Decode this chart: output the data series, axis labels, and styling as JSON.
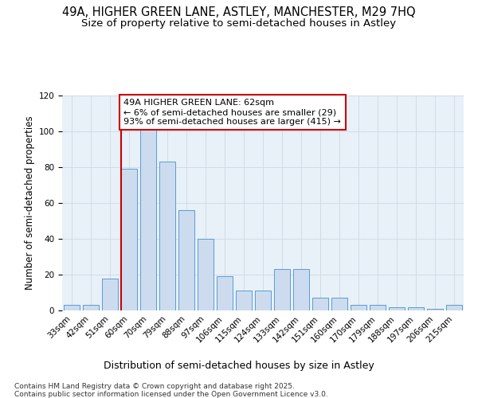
{
  "title_line1": "49A, HIGHER GREEN LANE, ASTLEY, MANCHESTER, M29 7HQ",
  "title_line2": "Size of property relative to semi-detached houses in Astley",
  "xlabel": "Distribution of semi-detached houses by size in Astley",
  "ylabel": "Number of semi-detached properties",
  "categories": [
    "33sqm",
    "42sqm",
    "51sqm",
    "60sqm",
    "70sqm",
    "79sqm",
    "88sqm",
    "97sqm",
    "106sqm",
    "115sqm",
    "124sqm",
    "133sqm",
    "142sqm",
    "151sqm",
    "160sqm",
    "170sqm",
    "179sqm",
    "188sqm",
    "197sqm",
    "206sqm",
    "215sqm"
  ],
  "values": [
    3,
    3,
    18,
    79,
    101,
    83,
    56,
    40,
    19,
    11,
    11,
    23,
    23,
    7,
    7,
    3,
    3,
    2,
    2,
    1,
    3
  ],
  "bar_color": "#ccdcee",
  "bar_edge_color": "#5b9bd5",
  "grid_color": "#d0d8e4",
  "bg_color": "#e8f0f8",
  "annotation_box_color": "#cc0000",
  "prop_line_color": "#cc0000",
  "ylim": [
    0,
    120
  ],
  "yticks": [
    0,
    20,
    40,
    60,
    80,
    100,
    120
  ],
  "prop_bar_index": 3,
  "prop_label": "49A HIGHER GREEN LANE: 62sqm",
  "smaller_pct": "6%",
  "smaller_count": 29,
  "larger_pct": "93%",
  "larger_count": 415,
  "footer_line1": "Contains HM Land Registry data © Crown copyright and database right 2025.",
  "footer_line2": "Contains public sector information licensed under the Open Government Licence v3.0.",
  "title_fontsize": 10.5,
  "subtitle_fontsize": 9.5,
  "ylabel_fontsize": 8.5,
  "xlabel_fontsize": 9,
  "tick_fontsize": 7.5,
  "annot_fontsize": 8,
  "footer_fontsize": 6.5
}
